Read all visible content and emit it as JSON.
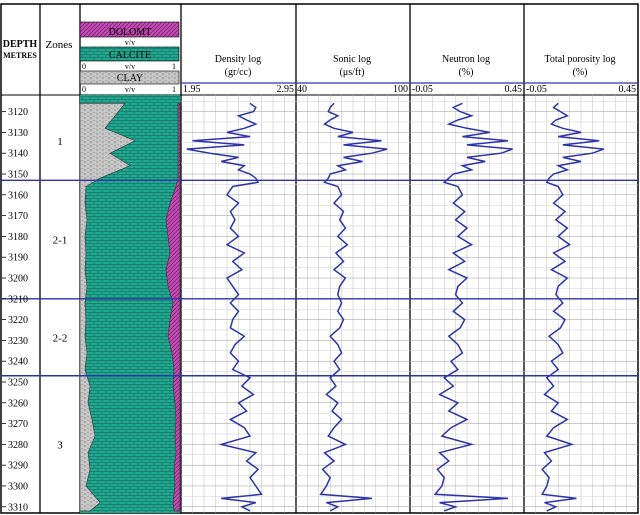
{
  "chart_data": {
    "type": "line",
    "depth_header": [
      "DEPTH",
      "METRES"
    ],
    "zones_header": "Zones",
    "lithology": {
      "legend": [
        {
          "label": "DOLOMT",
          "left": "",
          "right": "",
          "color": "#c24ab4"
        },
        {
          "label": "CALCITE",
          "left": "",
          "right": "",
          "color": "#21a890"
        },
        {
          "label": "CLAY",
          "left": "0",
          "right": "1",
          "color": "#c8c8c8"
        }
      ],
      "unit_labels": [
        "v/v",
        "v/v",
        "v/v"
      ],
      "scale": {
        "left": "0",
        "mid": "v/v",
        "right": "1"
      }
    },
    "depth_ticks": [
      3120,
      3130,
      3140,
      3150,
      3160,
      3170,
      3180,
      3190,
      3200,
      3210,
      3220,
      3230,
      3240,
      3250,
      3260,
      3270,
      3280,
      3290,
      3300,
      3310
    ],
    "ylim": [
      3112,
      3313
    ],
    "zones": [
      {
        "name": "1",
        "top": 3115,
        "bottom": 3153
      },
      {
        "name": "2-1",
        "top": 3153,
        "bottom": 3210
      },
      {
        "name": "2-2",
        "top": 3210,
        "bottom": 3247
      },
      {
        "name": "3",
        "top": 3247,
        "bottom": 3313
      }
    ],
    "zone_boundaries": [
      3153,
      3210,
      3247
    ],
    "tracks": [
      {
        "name": "Density log",
        "unit": "(gr/cc)",
        "min": "1.95",
        "max": "2.95",
        "xlim": [
          1.95,
          2.95
        ],
        "color": "#2c35a8"
      },
      {
        "name": "Sonic log",
        "unit": "(μs/ft)",
        "min": "40",
        "max": "100",
        "xlim": [
          40,
          100
        ],
        "color": "#2c35a8"
      },
      {
        "name": "Neutron log",
        "unit": "(%)",
        "min": "-0.05",
        "max": "0.45",
        "xlim": [
          -0.05,
          0.45
        ],
        "color": "#2c35a8"
      },
      {
        "name": "Total porosity log",
        "unit": "(%)",
        "min": "-0.05",
        "max": "0.45",
        "xlim": [
          -0.05,
          0.45
        ],
        "color": "#2c35a8"
      }
    ],
    "depth": [
      3116,
      3118,
      3120,
      3122,
      3124,
      3126,
      3128,
      3130,
      3132,
      3134,
      3136,
      3138,
      3140,
      3142,
      3144,
      3146,
      3148,
      3150,
      3152,
      3154,
      3156,
      3160,
      3164,
      3168,
      3172,
      3176,
      3180,
      3184,
      3188,
      3192,
      3196,
      3200,
      3204,
      3208,
      3212,
      3216,
      3220,
      3224,
      3228,
      3232,
      3236,
      3240,
      3244,
      3248,
      3252,
      3256,
      3260,
      3264,
      3268,
      3272,
      3276,
      3280,
      3284,
      3288,
      3292,
      3296,
      3300,
      3304,
      3306,
      3308,
      3310,
      3312
    ],
    "series": [
      {
        "name": "Density log",
        "values": [
          2.55,
          2.6,
          2.58,
          2.45,
          2.52,
          2.6,
          2.5,
          2.35,
          2.55,
          2.05,
          2.5,
          2.0,
          2.2,
          2.45,
          2.3,
          2.5,
          2.45,
          2.55,
          2.6,
          2.62,
          2.4,
          2.35,
          2.45,
          2.38,
          2.42,
          2.38,
          2.45,
          2.35,
          2.5,
          2.4,
          2.48,
          2.35,
          2.4,
          2.45,
          2.38,
          2.45,
          2.4,
          2.38,
          2.5,
          2.42,
          2.38,
          2.45,
          2.4,
          2.55,
          2.48,
          2.58,
          2.45,
          2.52,
          2.38,
          2.5,
          2.55,
          2.3,
          2.6,
          2.52,
          2.62,
          2.55,
          2.6,
          2.65,
          2.3,
          2.6,
          2.48,
          2.55
        ]
      },
      {
        "name": "Sonic log",
        "values": [
          60,
          58,
          57,
          62,
          58,
          55,
          60,
          70,
          62,
          85,
          65,
          88,
          80,
          65,
          75,
          62,
          66,
          58,
          57,
          55,
          62,
          64,
          60,
          65,
          63,
          66,
          62,
          67,
          61,
          65,
          60,
          66,
          63,
          62,
          64,
          62,
          65,
          63,
          58,
          62,
          64,
          60,
          63,
          58,
          61,
          56,
          62,
          59,
          64,
          60,
          57,
          66,
          55,
          60,
          54,
          58,
          56,
          53,
          80,
          56,
          62,
          58
        ]
      },
      {
        "name": "Neutron log",
        "values": [
          0.18,
          0.14,
          0.17,
          0.22,
          0.16,
          0.12,
          0.2,
          0.3,
          0.18,
          0.38,
          0.2,
          0.4,
          0.35,
          0.2,
          0.28,
          0.18,
          0.22,
          0.14,
          0.12,
          0.1,
          0.16,
          0.18,
          0.14,
          0.19,
          0.15,
          0.2,
          0.16,
          0.22,
          0.14,
          0.19,
          0.12,
          0.2,
          0.16,
          0.15,
          0.18,
          0.14,
          0.19,
          0.17,
          0.12,
          0.16,
          0.18,
          0.13,
          0.16,
          0.1,
          0.14,
          0.08,
          0.16,
          0.12,
          0.2,
          0.13,
          0.09,
          0.22,
          0.08,
          0.12,
          0.07,
          0.1,
          0.09,
          0.06,
          0.38,
          0.08,
          0.15,
          0.1
        ]
      },
      {
        "name": "Total porosity log",
        "values": [
          0.1,
          0.08,
          0.11,
          0.14,
          0.09,
          0.07,
          0.12,
          0.2,
          0.1,
          0.28,
          0.12,
          0.3,
          0.25,
          0.12,
          0.2,
          0.1,
          0.14,
          0.08,
          0.06,
          0.05,
          0.1,
          0.12,
          0.08,
          0.13,
          0.09,
          0.14,
          0.1,
          0.15,
          0.08,
          0.13,
          0.07,
          0.14,
          0.1,
          0.09,
          0.12,
          0.08,
          0.13,
          0.11,
          0.06,
          0.1,
          0.12,
          0.07,
          0.1,
          0.05,
          0.08,
          0.04,
          0.1,
          0.07,
          0.14,
          0.08,
          0.05,
          0.16,
          0.04,
          0.07,
          0.03,
          0.06,
          0.05,
          0.03,
          0.18,
          0.04,
          0.09,
          0.05
        ]
      }
    ],
    "lithology_profile": {
      "depth": [
        3116,
        3122,
        3128,
        3134,
        3140,
        3146,
        3152,
        3156,
        3164,
        3172,
        3180,
        3188,
        3196,
        3204,
        3212,
        3220,
        3228,
        3236,
        3244,
        3252,
        3260,
        3268,
        3276,
        3284,
        3292,
        3300,
        3308,
        3312
      ],
      "clay": [
        0.45,
        0.35,
        0.25,
        0.55,
        0.3,
        0.5,
        0.2,
        0.06,
        0.05,
        0.07,
        0.05,
        0.06,
        0.05,
        0.07,
        0.05,
        0.06,
        0.05,
        0.07,
        0.05,
        0.1,
        0.08,
        0.12,
        0.15,
        0.08,
        0.1,
        0.06,
        0.2,
        0.1
      ],
      "dolomite": [
        0.0,
        0.0,
        0.0,
        0.0,
        0.0,
        0.0,
        0.0,
        0.02,
        0.08,
        0.12,
        0.1,
        0.08,
        0.12,
        0.1,
        0.05,
        0.08,
        0.1,
        0.06,
        0.04,
        0.05,
        0.03,
        0.02,
        0.03,
        0.02,
        0.04,
        0.03,
        0.05,
        0.04
      ]
    }
  }
}
